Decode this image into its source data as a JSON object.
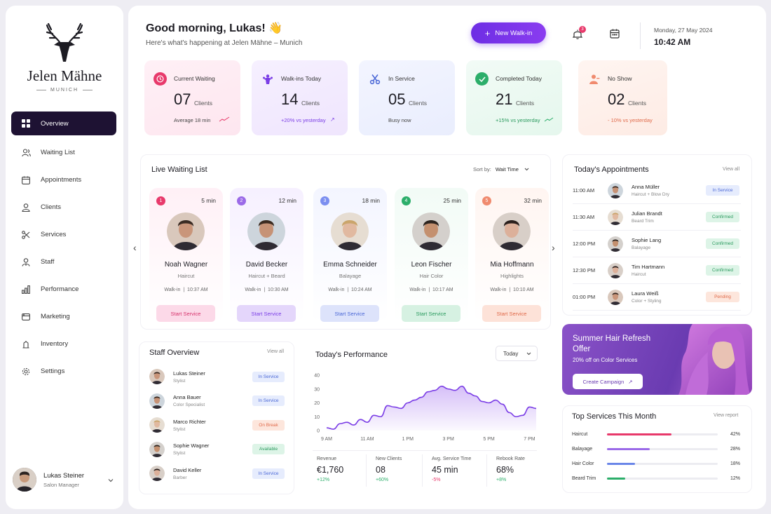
{
  "brand": {
    "name": "Jelen Mähne",
    "city": "MUNICH"
  },
  "nav": [
    {
      "label": "Overview",
      "icon": "grid-icon",
      "active": true
    },
    {
      "label": "Waiting List",
      "icon": "users-icon"
    },
    {
      "label": "Appointments",
      "icon": "calendar-icon"
    },
    {
      "label": "Clients",
      "icon": "user-icon"
    },
    {
      "label": "Services",
      "icon": "scissors-icon"
    },
    {
      "label": "Staff",
      "icon": "staff-icon"
    },
    {
      "label": "Performance",
      "icon": "bar-chart-icon"
    },
    {
      "label": "Marketing",
      "icon": "megaphone-icon"
    },
    {
      "label": "Inventory",
      "icon": "box-icon"
    },
    {
      "label": "Settings",
      "icon": "gear-icon"
    }
  ],
  "user": {
    "name": "Lukas Steiner",
    "role": "Salon Manager"
  },
  "header": {
    "greeting": "Good morning, Lukas! 👋",
    "subtitle": "Here's what's happening at Jelen Mähne – Munich",
    "new_walkin": "New Walk-in",
    "notif_count": "3",
    "date": "Monday, 27 May 2024",
    "time": "10:42 AM"
  },
  "stats": [
    {
      "label": "Current Waiting",
      "value": "07",
      "unit": "Clients",
      "foot": "Average 18 min",
      "accent": "#e8396b",
      "icon": "clock-icon"
    },
    {
      "label": "Walk-ins Today",
      "value": "14",
      "unit": "Clients",
      "foot": "+20% vs yesterday",
      "accent": "#7b3ee6",
      "icon": "walkin-icon"
    },
    {
      "label": "In Service",
      "value": "05",
      "unit": "Clients",
      "foot": "Busy now",
      "accent": "#4a67d6",
      "icon": "scissors-icon"
    },
    {
      "label": "Completed Today",
      "value": "21",
      "unit": "Clients",
      "foot": "+15% vs yesterday",
      "accent": "#2cae6a",
      "icon": "check-icon"
    },
    {
      "label": "No Show",
      "value": "02",
      "unit": "Clients",
      "foot": "- 10% vs yesterday",
      "accent": "#f08a6e",
      "icon": "user-x-icon"
    }
  ],
  "waiting": {
    "title": "Live Waiting List",
    "sort_label": "Sort by:",
    "sort_value": "Wait Time",
    "items": [
      {
        "num": "1",
        "mins": "5 min",
        "name": "Noah Wagner",
        "service": "Haircut",
        "time": "Walk-in  |  10:37 AM",
        "btn": "Start Service",
        "accent": "#e8396b",
        "bg": "#fff0f6",
        "btnbg": "#fcd9e8",
        "btncolor": "#d6336c"
      },
      {
        "num": "2",
        "mins": "12 min",
        "name": "David Becker",
        "service": "Haircut + Beard",
        "time": "Walk-in  |  10:30 AM",
        "btn": "Start Service",
        "accent": "#9b6ae8",
        "bg": "#f6f0ff",
        "btnbg": "#e4d6fb",
        "btncolor": "#7b3ee6"
      },
      {
        "num": "3",
        "mins": "18 min",
        "name": "Emma Schneider",
        "service": "Balayage",
        "time": "Walk-in  |  10:24 AM",
        "btn": "Start Service",
        "accent": "#7b8ef0",
        "bg": "#f3f5ff",
        "btnbg": "#dde3fb",
        "btncolor": "#4a67d6"
      },
      {
        "num": "4",
        "mins": "25 min",
        "name": "Leon Fischer",
        "service": "Hair Color",
        "time": "Walk-in  |  10:17 AM",
        "btn": "Start Service",
        "accent": "#2cae6a",
        "bg": "#f2fbf6",
        "btnbg": "#d6f1e2",
        "btncolor": "#2a9a5e"
      },
      {
        "num": "5",
        "mins": "32 min",
        "name": "Mia Hoffmann",
        "service": "Highlights",
        "time": "Walk-in  |  10:10 AM",
        "btn": "Start Service",
        "accent": "#f08a6e",
        "bg": "#fff5f1",
        "btnbg": "#fde2d8",
        "btncolor": "#e06a4a"
      }
    ]
  },
  "appointments": {
    "title": "Today's Appointments",
    "view_all": "View all",
    "items": [
      {
        "time": "11:00 AM",
        "name": "Anna Müller",
        "service": "Haircut + Blow Dry",
        "status": "In Service",
        "bg": "#e6ecfd",
        "color": "#4a67d6"
      },
      {
        "time": "11:30 AM",
        "name": "Julian Brandt",
        "service": "Beard Trim",
        "status": "Confirmed",
        "bg": "#ddf4e7",
        "color": "#2a9a5e"
      },
      {
        "time": "12:00 PM",
        "name": "Sophie Lang",
        "service": "Balayage",
        "status": "Confirmed",
        "bg": "#ddf4e7",
        "color": "#2a9a5e"
      },
      {
        "time": "12:30 PM",
        "name": "Tim Hartmann",
        "service": "Haircut",
        "status": "Confirmed",
        "bg": "#ddf4e7",
        "color": "#2a9a5e"
      },
      {
        "time": "01:00 PM",
        "name": "Laura Weiß",
        "service": "Color + Styling",
        "status": "Pending",
        "bg": "#fde6dc",
        "color": "#e06a4a"
      }
    ]
  },
  "promo": {
    "title": "Summer Hair Refresh Offer",
    "subtitle": "20% off on Color Services",
    "button": "Create Campaign"
  },
  "staff": {
    "title": "Staff Overview",
    "view_all": "View all",
    "items": [
      {
        "name": "Lukas Steiner",
        "role": "Stylist",
        "status": "In Service",
        "bg": "#e6ecfd",
        "color": "#4a67d6"
      },
      {
        "name": "Anna Bauer",
        "role": "Color Specialist",
        "status": "In Service",
        "bg": "#e6ecfd",
        "color": "#4a67d6"
      },
      {
        "name": "Marco Richter",
        "role": "Stylist",
        "status": "On Break",
        "bg": "#fde6dc",
        "color": "#e06a4a"
      },
      {
        "name": "Sophie Wagner",
        "role": "Stylist",
        "status": "Available",
        "bg": "#ddf4e7",
        "color": "#2a9a5e"
      },
      {
        "name": "David Keller",
        "role": "Barber",
        "status": "In Service",
        "bg": "#e6ecfd",
        "color": "#4a67d6"
      }
    ]
  },
  "performance": {
    "title": "Today's Performance",
    "range": "Today",
    "metrics": [
      {
        "label": "Revenue",
        "value": "€1,760",
        "delta": "+12%",
        "color": "#2cae6a"
      },
      {
        "label": "New Clients",
        "value": "08",
        "delta": "+60%",
        "color": "#2cae6a"
      },
      {
        "label": "Avg. Service Time",
        "value": "45 min",
        "delta": "-5%",
        "color": "#e8396b"
      },
      {
        "label": "Rebook Rate",
        "value": "68%",
        "delta": "+8%",
        "color": "#2cae6a"
      }
    ]
  },
  "chart_data": {
    "type": "area",
    "x": [
      9,
      9.33,
      9.67,
      10,
      10.33,
      10.67,
      11,
      11.33,
      11.67,
      12,
      12.33,
      12.67,
      13,
      13.33,
      13.67,
      14,
      14.33,
      14.67,
      15,
      15.33,
      15.67,
      16,
      16.33,
      16.67,
      17,
      17.33,
      17.67,
      18,
      18.33,
      18.67,
      19,
      19.33
    ],
    "values": [
      2,
      1,
      5,
      6,
      4,
      8,
      6,
      11,
      10,
      18,
      17,
      16,
      20,
      22,
      24,
      28,
      29,
      32,
      30,
      29,
      32,
      27,
      25,
      21,
      20,
      22,
      19,
      13,
      10,
      11,
      17,
      16
    ],
    "xticks": [
      "9 AM",
      "11 AM",
      "1 PM",
      "3 PM",
      "5 PM",
      "7 PM"
    ],
    "xtick_values": [
      9,
      11,
      13,
      15,
      17,
      19
    ],
    "yticks": [
      0,
      10,
      20,
      30,
      40
    ],
    "xlim": [
      9,
      19.4
    ],
    "ylim": [
      0,
      40
    ],
    "grid": false,
    "color": "#7b3ee6"
  },
  "top_services": {
    "title": "Top Services This Month",
    "view_report": "View report",
    "items": [
      {
        "name": "Haircut",
        "pct": 42,
        "label": "42%",
        "color": "#e8396b"
      },
      {
        "name": "Balayage",
        "pct": 28,
        "label": "28%",
        "color": "#9b6ae8"
      },
      {
        "name": "Hair Color",
        "pct": 18,
        "label": "18%",
        "color": "#6a86e8"
      },
      {
        "name": "Beard Trim",
        "pct": 12,
        "label": "12%",
        "color": "#2cae6a"
      }
    ]
  }
}
